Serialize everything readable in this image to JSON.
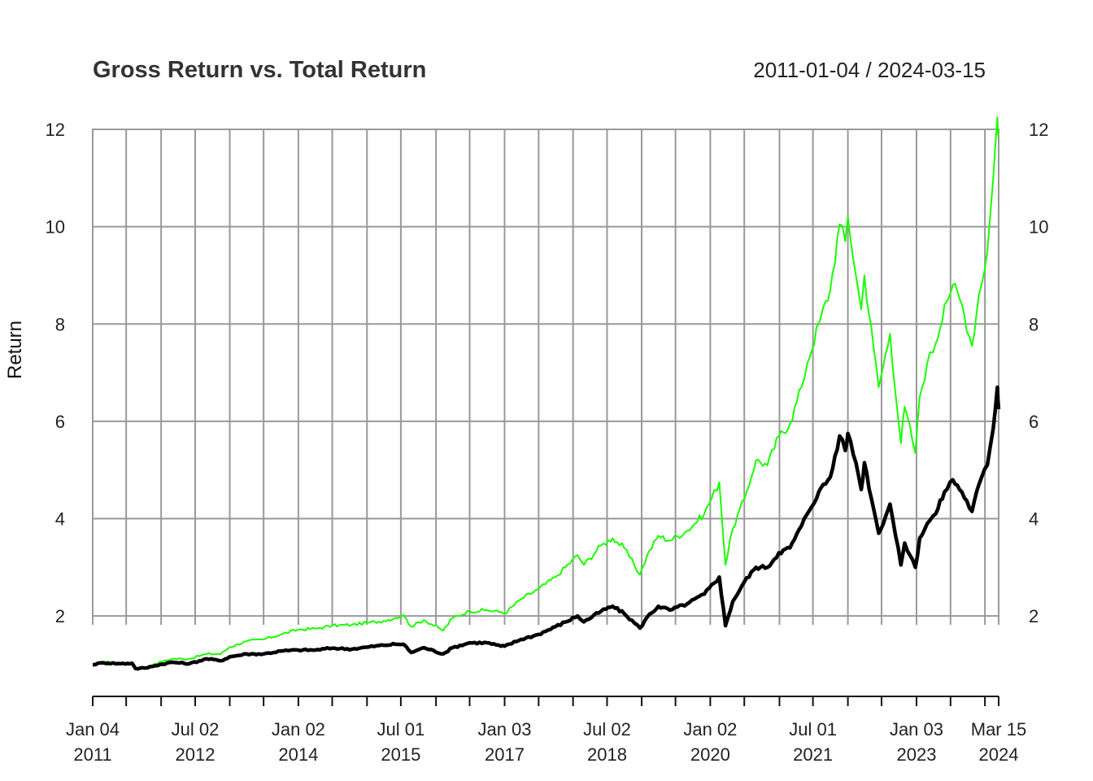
{
  "chart_data": {
    "type": "line",
    "title": "Gross Return vs. Total Return",
    "date_range": "2011-01-04 / 2024-03-15",
    "ylabel": "Return",
    "xlabel": "",
    "xlim": [
      "2011-01-04",
      "2024-03-15"
    ],
    "ylim": [
      0.4,
      12.3
    ],
    "y_ticks": [
      2,
      4,
      6,
      8,
      10,
      12
    ],
    "x_tick_labels": [
      {
        "date": "2011-01-04",
        "line1": "Jan 04",
        "line2": "2011"
      },
      {
        "date": "2012-07-02",
        "line1": "Jul 02",
        "line2": "2012"
      },
      {
        "date": "2014-01-02",
        "line1": "Jan 02",
        "line2": "2014"
      },
      {
        "date": "2015-07-01",
        "line1": "Jul 01",
        "line2": "2015"
      },
      {
        "date": "2017-01-03",
        "line1": "Jan 03",
        "line2": "2017"
      },
      {
        "date": "2018-07-02",
        "line1": "Jul 02",
        "line2": "2018"
      },
      {
        "date": "2020-01-02",
        "line1": "Jan 02",
        "line2": "2020"
      },
      {
        "date": "2021-07-01",
        "line1": "Jul 01",
        "line2": "2021"
      },
      {
        "date": "2023-01-03",
        "line1": "Jan 03",
        "line2": "2023"
      },
      {
        "date": "2024-03-15",
        "line1": "Mar 15",
        "line2": "2024"
      }
    ],
    "grid_dates": [
      "2011-01-04",
      "2011-07-01",
      "2012-01-03",
      "2012-07-02",
      "2013-01-02",
      "2013-07-01",
      "2014-01-02",
      "2014-07-01",
      "2015-01-02",
      "2015-07-01",
      "2016-01-04",
      "2016-07-01",
      "2017-01-03",
      "2017-07-03",
      "2018-01-02",
      "2018-07-02",
      "2019-01-02",
      "2019-07-01",
      "2020-01-02",
      "2020-07-01",
      "2021-01-04",
      "2021-07-01",
      "2022-01-03",
      "2022-07-01",
      "2023-01-03",
      "2023-07-03",
      "2024-01-02",
      "2024-03-15"
    ],
    "grid": true,
    "colors": {
      "gross": "#1aff00",
      "total": "#000000",
      "grid": "#999999"
    },
    "series": [
      {
        "key": "gross",
        "color": "#1aff00",
        "points": [
          [
            "2011-01-04",
            1.0
          ],
          [
            "2011-03-01",
            1.06
          ],
          [
            "2011-06-01",
            1.03
          ],
          [
            "2011-08-01",
            1.04
          ],
          [
            "2011-08-20",
            0.92
          ],
          [
            "2011-10-10",
            0.93
          ],
          [
            "2011-12-01",
            1.02
          ],
          [
            "2012-03-01",
            1.12
          ],
          [
            "2012-06-01",
            1.12
          ],
          [
            "2012-09-01",
            1.22
          ],
          [
            "2012-11-15",
            1.22
          ],
          [
            "2013-01-01",
            1.36
          ],
          [
            "2013-04-01",
            1.48
          ],
          [
            "2013-07-01",
            1.52
          ],
          [
            "2013-10-01",
            1.62
          ],
          [
            "2014-01-01",
            1.72
          ],
          [
            "2014-04-01",
            1.74
          ],
          [
            "2014-07-01",
            1.8
          ],
          [
            "2014-10-15",
            1.82
          ],
          [
            "2015-01-01",
            1.86
          ],
          [
            "2015-04-01",
            1.9
          ],
          [
            "2015-06-01",
            1.96
          ],
          [
            "2015-07-15",
            2.02
          ],
          [
            "2015-08-25",
            1.78
          ],
          [
            "2015-11-01",
            1.92
          ],
          [
            "2016-02-11",
            1.7
          ],
          [
            "2016-04-01",
            1.96
          ],
          [
            "2016-07-01",
            2.1
          ],
          [
            "2016-10-01",
            2.12
          ],
          [
            "2016-12-15",
            2.08
          ],
          [
            "2017-01-03",
            2.05
          ],
          [
            "2017-04-01",
            2.35
          ],
          [
            "2017-07-01",
            2.55
          ],
          [
            "2017-10-01",
            2.8
          ],
          [
            "2018-01-26",
            3.25
          ],
          [
            "2018-03-01",
            3.05
          ],
          [
            "2018-06-01",
            3.45
          ],
          [
            "2018-08-01",
            3.6
          ],
          [
            "2018-10-01",
            3.4
          ],
          [
            "2018-12-24",
            2.85
          ],
          [
            "2019-02-01",
            3.25
          ],
          [
            "2019-04-01",
            3.65
          ],
          [
            "2019-06-01",
            3.55
          ],
          [
            "2019-09-01",
            3.75
          ],
          [
            "2019-12-01",
            4.1
          ],
          [
            "2020-02-19",
            4.75
          ],
          [
            "2020-03-23",
            3.05
          ],
          [
            "2020-05-01",
            3.8
          ],
          [
            "2020-07-01",
            4.4
          ],
          [
            "2020-09-01",
            5.2
          ],
          [
            "2020-11-01",
            5.1
          ],
          [
            "2021-01-01",
            5.7
          ],
          [
            "2021-03-01",
            5.95
          ],
          [
            "2021-05-01",
            6.7
          ],
          [
            "2021-06-01",
            7.2
          ],
          [
            "2021-08-01",
            8.0
          ],
          [
            "2021-10-01",
            8.7
          ],
          [
            "2021-11-20",
            10.05
          ],
          [
            "2021-12-20",
            9.7
          ],
          [
            "2022-01-03",
            10.2
          ],
          [
            "2022-02-15",
            9.0
          ],
          [
            "2022-03-15",
            8.3
          ],
          [
            "2022-04-01",
            9.0
          ],
          [
            "2022-05-20",
            7.5
          ],
          [
            "2022-06-16",
            6.7
          ],
          [
            "2022-08-15",
            7.8
          ],
          [
            "2022-10-12",
            5.55
          ],
          [
            "2022-11-01",
            6.3
          ],
          [
            "2022-12-28",
            5.35
          ],
          [
            "2023-01-20",
            6.5
          ],
          [
            "2023-03-01",
            7.2
          ],
          [
            "2023-04-15",
            7.6
          ],
          [
            "2023-06-01",
            8.4
          ],
          [
            "2023-07-15",
            8.8
          ],
          [
            "2023-09-01",
            8.4
          ],
          [
            "2023-10-25",
            7.55
          ],
          [
            "2023-12-01",
            8.6
          ],
          [
            "2024-01-15",
            9.5
          ],
          [
            "2024-02-15",
            11.0
          ],
          [
            "2024-03-08",
            12.25
          ],
          [
            "2024-03-15",
            11.85
          ]
        ]
      },
      {
        "key": "total",
        "color": "#000000",
        "points": [
          [
            "2011-01-04",
            1.0
          ],
          [
            "2011-03-01",
            1.04
          ],
          [
            "2011-06-01",
            1.02
          ],
          [
            "2011-08-01",
            1.03
          ],
          [
            "2011-08-20",
            0.92
          ],
          [
            "2011-10-10",
            0.93
          ],
          [
            "2011-12-01",
            0.98
          ],
          [
            "2012-03-01",
            1.05
          ],
          [
            "2012-06-01",
            1.02
          ],
          [
            "2012-09-01",
            1.12
          ],
          [
            "2012-11-15",
            1.08
          ],
          [
            "2013-01-01",
            1.16
          ],
          [
            "2013-04-01",
            1.22
          ],
          [
            "2013-07-01",
            1.22
          ],
          [
            "2013-10-01",
            1.28
          ],
          [
            "2014-01-01",
            1.3
          ],
          [
            "2014-04-01",
            1.3
          ],
          [
            "2014-07-01",
            1.34
          ],
          [
            "2014-10-15",
            1.32
          ],
          [
            "2015-01-01",
            1.36
          ],
          [
            "2015-04-01",
            1.4
          ],
          [
            "2015-06-01",
            1.42
          ],
          [
            "2015-07-15",
            1.42
          ],
          [
            "2015-08-25",
            1.25
          ],
          [
            "2015-11-01",
            1.35
          ],
          [
            "2016-02-11",
            1.22
          ],
          [
            "2016-04-01",
            1.35
          ],
          [
            "2016-07-01",
            1.45
          ],
          [
            "2016-10-01",
            1.45
          ],
          [
            "2016-12-15",
            1.38
          ],
          [
            "2017-01-03",
            1.38
          ],
          [
            "2017-04-01",
            1.52
          ],
          [
            "2017-07-01",
            1.62
          ],
          [
            "2017-10-01",
            1.78
          ],
          [
            "2018-01-26",
            2.0
          ],
          [
            "2018-03-01",
            1.88
          ],
          [
            "2018-06-01",
            2.1
          ],
          [
            "2018-08-01",
            2.2
          ],
          [
            "2018-10-01",
            2.05
          ],
          [
            "2018-12-24",
            1.75
          ],
          [
            "2019-02-01",
            1.98
          ],
          [
            "2019-04-01",
            2.2
          ],
          [
            "2019-06-01",
            2.12
          ],
          [
            "2019-09-01",
            2.25
          ],
          [
            "2019-12-01",
            2.45
          ],
          [
            "2020-02-19",
            2.8
          ],
          [
            "2020-03-23",
            1.8
          ],
          [
            "2020-05-01",
            2.3
          ],
          [
            "2020-07-01",
            2.7
          ],
          [
            "2020-09-01",
            3.0
          ],
          [
            "2020-11-01",
            3.0
          ],
          [
            "2021-01-01",
            3.3
          ],
          [
            "2021-03-01",
            3.4
          ],
          [
            "2021-05-01",
            3.85
          ],
          [
            "2021-06-01",
            4.1
          ],
          [
            "2021-08-01",
            4.55
          ],
          [
            "2021-10-01",
            4.85
          ],
          [
            "2021-11-20",
            5.7
          ],
          [
            "2021-12-20",
            5.4
          ],
          [
            "2022-01-03",
            5.75
          ],
          [
            "2022-02-15",
            5.15
          ],
          [
            "2022-03-15",
            4.6
          ],
          [
            "2022-04-01",
            5.15
          ],
          [
            "2022-05-20",
            4.2
          ],
          [
            "2022-06-16",
            3.7
          ],
          [
            "2022-08-15",
            4.3
          ],
          [
            "2022-10-12",
            3.05
          ],
          [
            "2022-11-01",
            3.5
          ],
          [
            "2022-12-28",
            3.0
          ],
          [
            "2023-01-20",
            3.6
          ],
          [
            "2023-03-01",
            3.9
          ],
          [
            "2023-04-15",
            4.1
          ],
          [
            "2023-06-01",
            4.55
          ],
          [
            "2023-07-15",
            4.8
          ],
          [
            "2023-09-01",
            4.55
          ],
          [
            "2023-10-25",
            4.15
          ],
          [
            "2023-12-01",
            4.7
          ],
          [
            "2024-01-15",
            5.1
          ],
          [
            "2024-02-15",
            5.85
          ],
          [
            "2024-03-08",
            6.7
          ],
          [
            "2024-03-15",
            6.25
          ]
        ]
      }
    ]
  }
}
